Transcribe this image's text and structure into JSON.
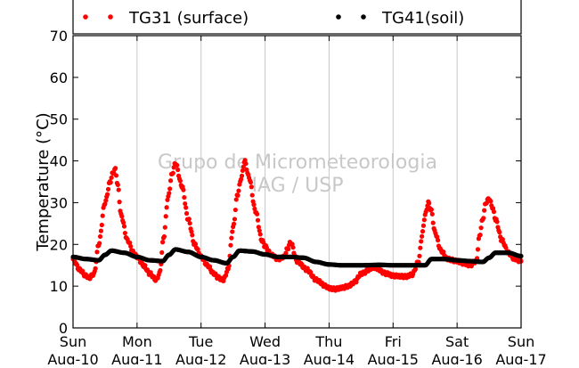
{
  "chart_data": {
    "type": "scatter",
    "ylabel": "Temperature (°C)",
    "ylim": [
      0,
      70
    ],
    "yticks": [
      0,
      10,
      20,
      30,
      40,
      50,
      60,
      70
    ],
    "xlim": [
      0,
      7
    ],
    "xticks": [
      {
        "day": "Sun",
        "date": "Aug-10"
      },
      {
        "day": "Mon",
        "date": "Aug-11"
      },
      {
        "day": "Tue",
        "date": "Aug-12"
      },
      {
        "day": "Wed",
        "date": "Aug-13"
      },
      {
        "day": "Thu",
        "date": "Aug-14"
      },
      {
        "day": "Fri",
        "date": "Aug-15"
      },
      {
        "day": "Sat",
        "date": "Aug-16"
      },
      {
        "day": "Sun",
        "date": "Aug-17"
      }
    ],
    "grid": "vertical",
    "legend": "top",
    "watermark": [
      "Grupo de Micrometeorologia",
      "IAG / USP"
    ],
    "series": [
      {
        "name": "TG31 (surface)",
        "color": "#ff0000",
        "x": [
          0,
          0.1,
          0.2,
          0.25,
          0.33,
          0.4,
          0.5,
          0.58,
          0.62,
          0.66,
          0.7,
          0.75,
          0.85,
          0.95,
          1.0,
          1.1,
          1.2,
          1.3,
          1.35,
          1.42,
          1.48,
          1.55,
          1.6,
          1.7,
          1.8,
          1.9,
          2.0,
          2.1,
          2.2,
          2.27,
          2.35,
          2.42,
          2.5,
          2.57,
          2.63,
          2.68,
          2.75,
          2.85,
          2.95,
          3.0,
          3.1,
          3.2,
          3.3,
          3.35,
          3.4,
          3.5,
          3.65,
          3.8,
          3.95,
          4.0,
          4.1,
          4.2,
          4.3,
          4.4,
          4.5,
          4.7,
          4.9,
          5.0,
          5.2,
          5.3,
          5.4,
          5.45,
          5.5,
          5.55,
          5.6,
          5.65,
          5.75,
          5.85,
          6.0,
          6.1,
          6.2,
          6.3,
          6.35,
          6.4,
          6.45,
          6.5,
          6.55,
          6.6,
          6.7,
          6.8,
          6.9,
          7.0
        ],
        "y": [
          16.5,
          14,
          12.5,
          12,
          13,
          20,
          30,
          35,
          37,
          38,
          34,
          27,
          21,
          18,
          17,
          15,
          13,
          11.5,
          13,
          22,
          31,
          37,
          39.5,
          34,
          26,
          20,
          17,
          15,
          13,
          12,
          11.5,
          14,
          24,
          32,
          36,
          40,
          36,
          28,
          21,
          19.5,
          17.5,
          16.5,
          17,
          19,
          20.5,
          16,
          14,
          11.5,
          10,
          9.5,
          9.3,
          9.6,
          10,
          11,
          13,
          14.5,
          13,
          12.5,
          12.3,
          12.8,
          16,
          22,
          27,
          30,
          28,
          23,
          18.5,
          16.5,
          16,
          15.5,
          15,
          16,
          22,
          26,
          30,
          31,
          29,
          26,
          21,
          18,
          16.5,
          16
        ]
      },
      {
        "name": "TG41(soil)",
        "color": "#000000",
        "x": [
          0,
          0.2,
          0.4,
          0.5,
          0.6,
          0.8,
          1.0,
          1.2,
          1.4,
          1.5,
          1.6,
          1.8,
          2.0,
          2.2,
          2.4,
          2.5,
          2.6,
          2.8,
          3.0,
          3.2,
          3.4,
          3.6,
          3.8,
          4.0,
          4.2,
          4.5,
          4.8,
          5.0,
          5.3,
          5.5,
          5.6,
          5.8,
          6.0,
          6.2,
          6.4,
          6.5,
          6.6,
          6.8,
          7.0
        ],
        "y": [
          17,
          16.5,
          16.2,
          17.5,
          18.5,
          18,
          17,
          16.2,
          16,
          17.5,
          18.8,
          18.2,
          17,
          16.2,
          15.5,
          17,
          18.5,
          18.3,
          17.6,
          17,
          17,
          16.8,
          15.8,
          15.2,
          15,
          15,
          15.1,
          15,
          15,
          15,
          16.5,
          16.5,
          16.2,
          16,
          15.8,
          16.8,
          18,
          18,
          17.2
        ]
      }
    ]
  }
}
